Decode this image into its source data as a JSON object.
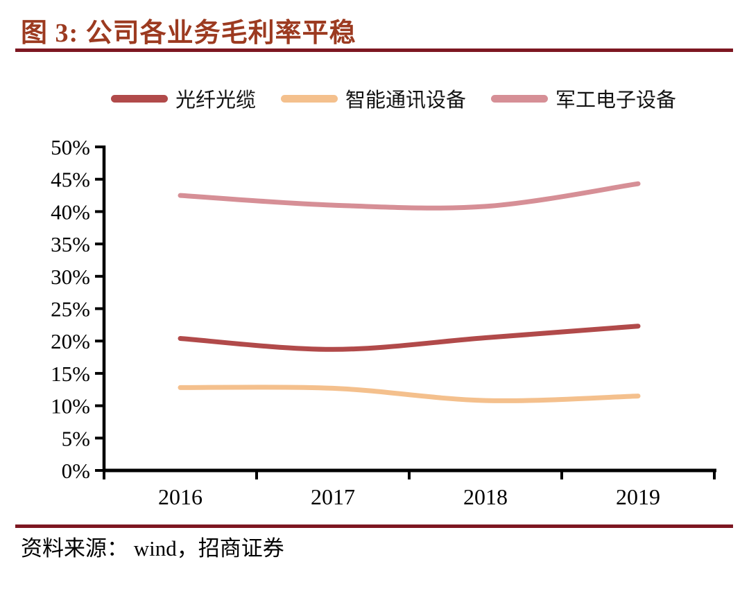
{
  "header": {
    "title": "图 3:  公司各业务毛利率平稳"
  },
  "legend": [
    {
      "label": "光纤光缆",
      "color": "#b14a4a"
    },
    {
      "label": "智能通讯设备",
      "color": "#f4c08d"
    },
    {
      "label": "军工电子设备",
      "color": "#d68f96"
    }
  ],
  "chart_data": {
    "type": "line",
    "title": "公司各业务毛利率平稳",
    "categories": [
      "2016",
      "2017",
      "2018",
      "2019"
    ],
    "series": [
      {
        "name": "光纤光缆",
        "color": "#b14a4a",
        "values": [
          20.4,
          18.7,
          20.5,
          22.3
        ]
      },
      {
        "name": "智能通讯设备",
        "color": "#f4c08d",
        "values": [
          12.8,
          12.7,
          10.8,
          11.5
        ]
      },
      {
        "name": "军工电子设备",
        "color": "#d68f96",
        "values": [
          42.5,
          41.0,
          40.8,
          44.3
        ]
      }
    ],
    "ylim": [
      0,
      50
    ],
    "ytick_step": 5,
    "ytick_labels": [
      "0%",
      "5%",
      "10%",
      "15%",
      "20%",
      "25%",
      "30%",
      "35%",
      "40%",
      "45%",
      "50%"
    ],
    "grid": false,
    "smooth": true,
    "legend_position": "top",
    "xlabel": "",
    "ylabel": "",
    "axis_color": "#000000"
  },
  "footer": {
    "source_label": "资料来源： wind，招商证券"
  }
}
